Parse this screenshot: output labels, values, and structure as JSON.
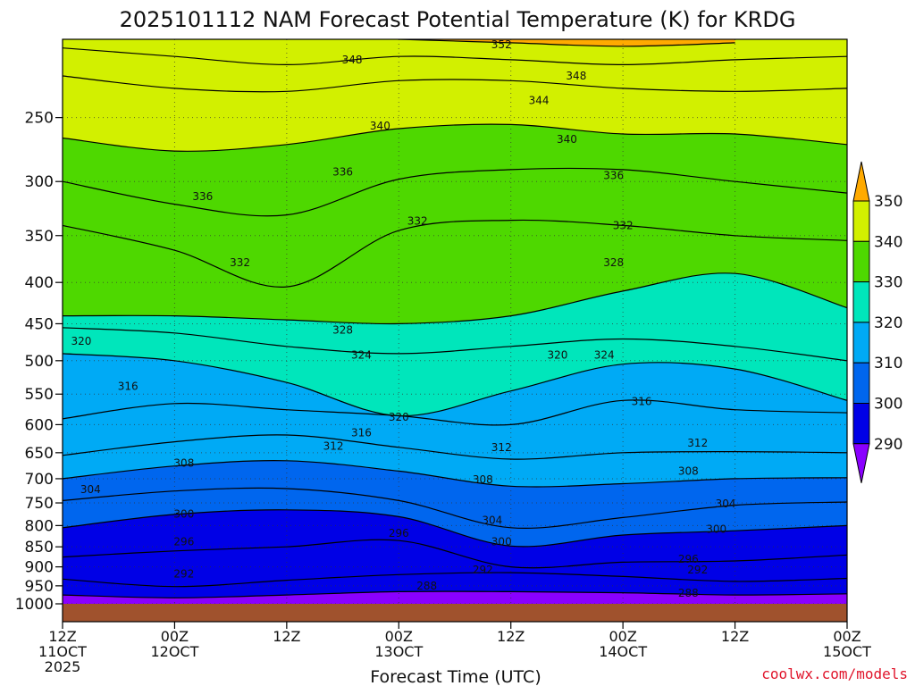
{
  "chart_data": {
    "type": "contour",
    "title": "2025101112 NAM Forecast Potential Temperature (K) for KRDG",
    "xlabel": "Forecast Time (UTC)",
    "credit": "coolwx.com/models",
    "y_axis": {
      "scale": "log-pressure",
      "ticks": [
        250,
        300,
        350,
        400,
        450,
        500,
        550,
        600,
        650,
        700,
        750,
        800,
        850,
        900,
        950,
        1000
      ]
    },
    "x_axis": {
      "range_hours": [
        0,
        84
      ],
      "ticks": [
        {
          "hour": 0,
          "line1": "12Z",
          "line2": "11OCT",
          "line3": "2025"
        },
        {
          "hour": 12,
          "line1": "00Z",
          "line2": "12OCT",
          "line3": ""
        },
        {
          "hour": 24,
          "line1": "12Z",
          "line2": "",
          "line3": ""
        },
        {
          "hour": 36,
          "line1": "00Z",
          "line2": "13OCT",
          "line3": ""
        },
        {
          "hour": 48,
          "line1": "12Z",
          "line2": "",
          "line3": ""
        },
        {
          "hour": 60,
          "line1": "00Z",
          "line2": "14OCT",
          "line3": ""
        },
        {
          "hour": 72,
          "line1": "12Z",
          "line2": "",
          "line3": ""
        },
        {
          "hour": 84,
          "line1": "00Z",
          "line2": "15OCT",
          "line3": ""
        }
      ]
    },
    "grid": true,
    "colorbar": {
      "labels": [
        290,
        300,
        310,
        320,
        330,
        340,
        350
      ],
      "bands": [
        {
          "lo": 280,
          "hi": 290,
          "color": "#8a00ff"
        },
        {
          "lo": 290,
          "hi": 300,
          "color": "#0000e6"
        },
        {
          "lo": 300,
          "hi": 310,
          "color": "#0066ee"
        },
        {
          "lo": 310,
          "hi": 320,
          "color": "#00aaf5"
        },
        {
          "lo": 320,
          "hi": 330,
          "color": "#00e6bb"
        },
        {
          "lo": 330,
          "hi": 340,
          "color": "#4ed800"
        },
        {
          "lo": 340,
          "hi": 350,
          "color": "#d2f000"
        },
        {
          "lo": 350,
          "hi": 360,
          "color": "#ffaa00"
        }
      ]
    },
    "ground_color": "#a0522d",
    "contours": [
      {
        "level": 288,
        "points": [
          [
            0,
            975
          ],
          [
            12,
            983
          ],
          [
            24,
            975
          ],
          [
            36,
            966
          ],
          [
            48,
            966
          ],
          [
            60,
            969
          ],
          [
            72,
            975
          ],
          [
            84,
            972
          ]
        ]
      },
      {
        "level": 292,
        "points": [
          [
            0,
            932
          ],
          [
            12,
            952
          ],
          [
            24,
            935
          ],
          [
            36,
            920
          ],
          [
            48,
            915
          ],
          [
            60,
            925
          ],
          [
            72,
            938
          ],
          [
            84,
            930
          ]
        ]
      },
      {
        "level": 296,
        "points": [
          [
            0,
            875
          ],
          [
            12,
            860
          ],
          [
            24,
            850
          ],
          [
            36,
            835
          ],
          [
            48,
            900
          ],
          [
            60,
            888
          ],
          [
            72,
            885
          ],
          [
            84,
            870
          ]
        ]
      },
      {
        "level": 300,
        "points": [
          [
            0,
            805
          ],
          [
            12,
            775
          ],
          [
            24,
            765
          ],
          [
            36,
            780
          ],
          [
            48,
            848
          ],
          [
            60,
            822
          ],
          [
            72,
            812
          ],
          [
            84,
            800
          ]
        ]
      },
      {
        "level": 304,
        "points": [
          [
            0,
            745
          ],
          [
            12,
            725
          ],
          [
            24,
            720
          ],
          [
            36,
            745
          ],
          [
            48,
            805
          ],
          [
            60,
            782
          ],
          [
            72,
            755
          ],
          [
            84,
            748
          ]
        ]
      },
      {
        "level": 308,
        "points": [
          [
            0,
            700
          ],
          [
            12,
            675
          ],
          [
            24,
            665
          ],
          [
            36,
            685
          ],
          [
            48,
            715
          ],
          [
            60,
            710
          ],
          [
            72,
            700
          ],
          [
            84,
            698
          ]
        ]
      },
      {
        "level": 312,
        "points": [
          [
            0,
            655
          ],
          [
            12,
            630
          ],
          [
            24,
            618
          ],
          [
            36,
            640
          ],
          [
            48,
            662
          ],
          [
            60,
            650
          ],
          [
            72,
            648
          ],
          [
            84,
            650
          ]
        ]
      },
      {
        "level": 316,
        "points": [
          [
            0,
            590
          ],
          [
            12,
            565
          ],
          [
            24,
            575
          ],
          [
            36,
            585
          ],
          [
            48,
            600
          ],
          [
            60,
            560
          ],
          [
            72,
            575
          ],
          [
            84,
            580
          ]
        ]
      },
      {
        "level": 320,
        "points": [
          [
            0,
            490
          ],
          [
            12,
            500
          ],
          [
            24,
            532
          ],
          [
            36,
            585
          ],
          [
            48,
            545
          ],
          [
            60,
            505
          ],
          [
            72,
            512
          ],
          [
            84,
            560
          ]
        ]
      },
      {
        "level": 324,
        "points": [
          [
            0,
            455
          ],
          [
            12,
            462
          ],
          [
            24,
            480
          ],
          [
            36,
            490
          ],
          [
            48,
            480
          ],
          [
            60,
            470
          ],
          [
            72,
            480
          ],
          [
            84,
            500
          ]
        ]
      },
      {
        "level": 328,
        "points": [
          [
            0,
            440
          ],
          [
            12,
            440
          ],
          [
            24,
            445
          ],
          [
            36,
            450
          ],
          [
            48,
            440
          ],
          [
            60,
            410
          ],
          [
            72,
            390
          ],
          [
            84,
            430
          ]
        ]
      },
      {
        "level": 332,
        "points": [
          [
            0,
            340
          ],
          [
            12,
            365
          ],
          [
            24,
            405
          ],
          [
            36,
            345
          ],
          [
            48,
            335
          ],
          [
            60,
            340
          ],
          [
            72,
            350
          ],
          [
            84,
            355
          ]
        ]
      },
      {
        "level": 336,
        "points": [
          [
            0,
            300
          ],
          [
            12,
            320
          ],
          [
            24,
            330
          ],
          [
            36,
            298
          ],
          [
            48,
            290
          ],
          [
            60,
            290
          ],
          [
            72,
            300
          ],
          [
            84,
            310
          ]
        ]
      },
      {
        "level": 340,
        "points": [
          [
            0,
            265
          ],
          [
            12,
            275
          ],
          [
            24,
            270
          ],
          [
            36,
            258
          ],
          [
            48,
            255
          ],
          [
            60,
            262
          ],
          [
            72,
            262
          ],
          [
            84,
            270
          ]
        ]
      },
      {
        "level": 344,
        "points": [
          [
            0,
            222
          ],
          [
            12,
            230
          ],
          [
            24,
            232
          ],
          [
            36,
            225
          ],
          [
            48,
            225
          ],
          [
            60,
            230
          ],
          [
            72,
            232
          ],
          [
            84,
            230
          ]
        ]
      },
      {
        "level": 348,
        "points": [
          [
            0,
            205
          ],
          [
            12,
            210
          ],
          [
            24,
            215
          ],
          [
            36,
            210
          ],
          [
            48,
            212
          ],
          [
            60,
            215
          ],
          [
            72,
            212
          ],
          [
            84,
            210
          ]
        ]
      },
      {
        "level": 352,
        "points": [
          [
            36,
            200
          ],
          [
            48,
            202
          ],
          [
            60,
            204
          ],
          [
            72,
            202
          ]
        ]
      }
    ],
    "contour_labels": [
      {
        "text": "352",
        "hour": 47,
        "p": 203
      },
      {
        "text": "348",
        "hour": 31,
        "p": 212
      },
      {
        "text": "348",
        "hour": 55,
        "p": 222
      },
      {
        "text": "344",
        "hour": 51,
        "p": 238
      },
      {
        "text": "340",
        "hour": 34,
        "p": 256
      },
      {
        "text": "340",
        "hour": 54,
        "p": 266
      },
      {
        "text": "336",
        "hour": 30,
        "p": 292
      },
      {
        "text": "336",
        "hour": 59,
        "p": 295
      },
      {
        "text": "336",
        "hour": 15,
        "p": 313
      },
      {
        "text": "332",
        "hour": 38,
        "p": 336
      },
      {
        "text": "332",
        "hour": 60,
        "p": 340
      },
      {
        "text": "332",
        "hour": 19,
        "p": 378
      },
      {
        "text": "328",
        "hour": 59,
        "p": 378
      },
      {
        "text": "328",
        "hour": 30,
        "p": 458
      },
      {
        "text": "324",
        "hour": 32,
        "p": 492
      },
      {
        "text": "324",
        "hour": 58,
        "p": 492
      },
      {
        "text": "320",
        "hour": 2,
        "p": 473
      },
      {
        "text": "320",
        "hour": 53,
        "p": 492
      },
      {
        "text": "320",
        "hour": 36,
        "p": 587
      },
      {
        "text": "316",
        "hour": 7,
        "p": 538
      },
      {
        "text": "316",
        "hour": 62,
        "p": 562
      },
      {
        "text": "316",
        "hour": 32,
        "p": 614
      },
      {
        "text": "312",
        "hour": 29,
        "p": 638
      },
      {
        "text": "312",
        "hour": 47,
        "p": 640
      },
      {
        "text": "312",
        "hour": 68,
        "p": 632
      },
      {
        "text": "308",
        "hour": 13,
        "p": 670
      },
      {
        "text": "308",
        "hour": 45,
        "p": 702
      },
      {
        "text": "308",
        "hour": 67,
        "p": 685
      },
      {
        "text": "304",
        "hour": 3,
        "p": 722
      },
      {
        "text": "304",
        "hour": 46,
        "p": 788
      },
      {
        "text": "304",
        "hour": 71,
        "p": 752
      },
      {
        "text": "300",
        "hour": 13,
        "p": 774
      },
      {
        "text": "300",
        "hour": 47,
        "p": 838
      },
      {
        "text": "300",
        "hour": 70,
        "p": 808
      },
      {
        "text": "296",
        "hour": 13,
        "p": 838
      },
      {
        "text": "296",
        "hour": 36,
        "p": 818
      },
      {
        "text": "296",
        "hour": 67,
        "p": 880
      },
      {
        "text": "292",
        "hour": 13,
        "p": 918
      },
      {
        "text": "292",
        "hour": 45,
        "p": 908
      },
      {
        "text": "292",
        "hour": 68,
        "p": 908
      },
      {
        "text": "288",
        "hour": 39,
        "p": 950
      },
      {
        "text": "288",
        "hour": 67,
        "p": 970
      }
    ]
  }
}
